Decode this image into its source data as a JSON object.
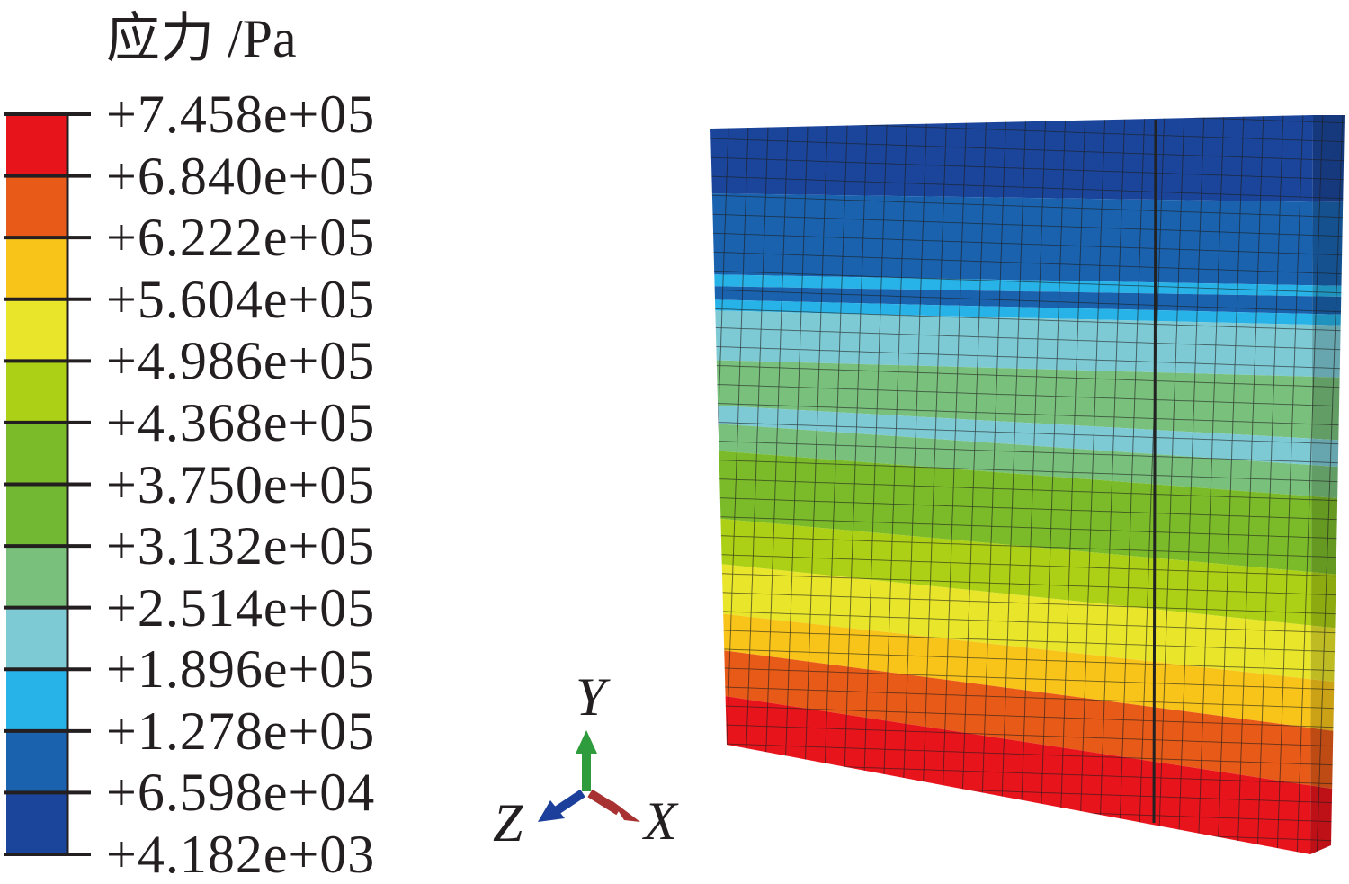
{
  "legend": {
    "title": "应力 /Pa",
    "values": [
      "+7.458e+05",
      "+6.840e+05",
      "+6.222e+05",
      "+5.604e+05",
      "+4.986e+05",
      "+4.368e+05",
      "+3.750e+05",
      "+3.132e+05",
      "+2.514e+05",
      "+1.896e+05",
      "+1.278e+05",
      "+6.598e+04",
      "+4.182e+03"
    ],
    "colors": [
      "#e8141c",
      "#e85a18",
      "#f8c41a",
      "#e8e52a",
      "#acd015",
      "#7bbb2a",
      "#72b832",
      "#79c07c",
      "#7ecad4",
      "#27b2e8",
      "#1a62ae",
      "#1b459a"
    ]
  },
  "triad": {
    "y_label": "Y",
    "z_label": "Z",
    "x_label": "X",
    "y_color": "#2e9b3c",
    "z_color": "#1b3f9a",
    "x_color": "#a83232"
  },
  "model": {
    "band_colors_top_to_bottom": [
      "#1b459a",
      "#1a62ae",
      "#27b2e8",
      "#1a62ae",
      "#27b2e8",
      "#7ecad4",
      "#79c07c",
      "#7ecad4",
      "#79c07c",
      "#7bbb2a",
      "#acd015",
      "#e8e52a",
      "#f8c41a",
      "#e85a18",
      "#e8141c"
    ]
  }
}
